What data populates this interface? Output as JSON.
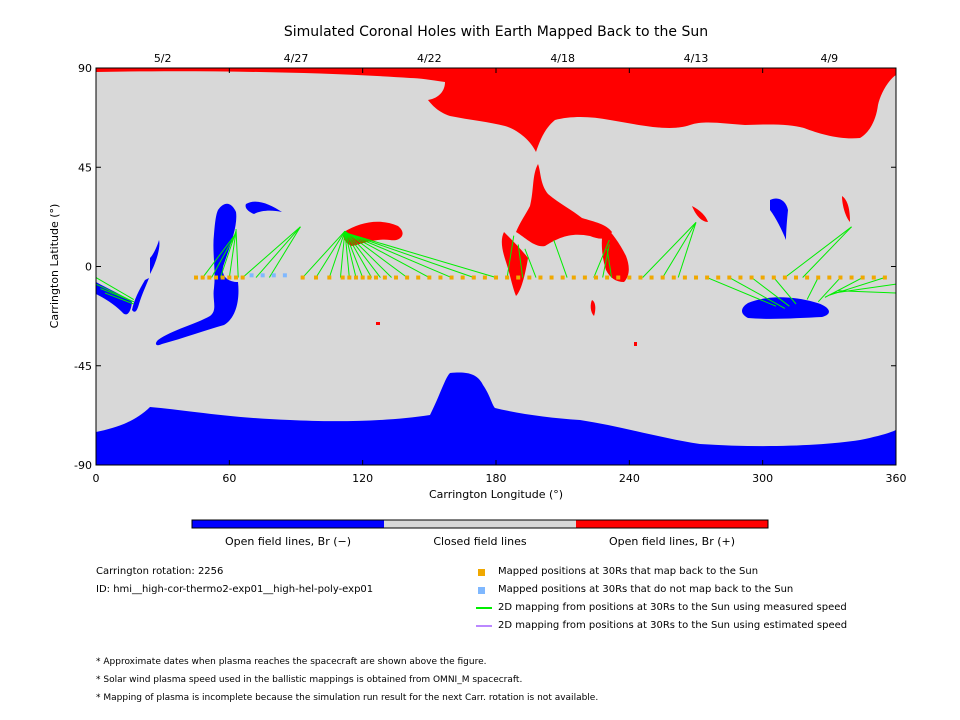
{
  "chart_data": {
    "type": "map",
    "title": "Simulated Coronal Holes with Earth Mapped Back to the Sun",
    "xlabel": "Carrington Longitude (°)",
    "ylabel": "Carrington Latitude (°)",
    "xlim": [
      0,
      360
    ],
    "ylim": [
      -90,
      90
    ],
    "x_ticks": [
      0,
      60,
      120,
      180,
      240,
      300,
      360
    ],
    "y_ticks": [
      90,
      45,
      0,
      -45,
      -90
    ],
    "y_tick_labels": [
      "90",
      "45",
      "0",
      "-45",
      "-90"
    ],
    "top_axis": [
      {
        "label": "5/2",
        "lon": 30
      },
      {
        "label": "4/27",
        "lon": 90
      },
      {
        "label": "4/22",
        "lon": 150
      },
      {
        "label": "4/18",
        "lon": 210
      },
      {
        "label": "4/13",
        "lon": 270
      },
      {
        "label": "4/9",
        "lon": 330
      }
    ],
    "colors": {
      "background": "#d8d8d8",
      "open_negative": "#0000ff",
      "open_positive": "#ff0000",
      "mapped": "#f0a800",
      "unmapped": "#7fb8ff",
      "measured_line": "#00ee00",
      "estimated_line": "#bb88ff"
    },
    "colorbar": [
      {
        "label": "Open field lines, Br (−)",
        "color": "#0000ff"
      },
      {
        "label": "Closed field lines",
        "color": "#d8d8d8"
      },
      {
        "label": "Open field lines, Br (+)",
        "color": "#ff0000"
      }
    ],
    "mapped_points": [
      [
        45,
        -5
      ],
      [
        48,
        -5
      ],
      [
        51,
        -5
      ],
      [
        54,
        -5
      ],
      [
        57,
        -5
      ],
      [
        60,
        -5
      ],
      [
        63,
        -5
      ],
      [
        66,
        -5
      ],
      [
        93,
        -5
      ],
      [
        99,
        -5
      ],
      [
        105,
        -5
      ],
      [
        111,
        -5
      ],
      [
        114,
        -5
      ],
      [
        117,
        -5
      ],
      [
        120,
        -5
      ],
      [
        123,
        -5
      ],
      [
        126,
        -5
      ],
      [
        130,
        -5
      ],
      [
        135,
        -5
      ],
      [
        140,
        -5
      ],
      [
        145,
        -5
      ],
      [
        150,
        -5
      ],
      [
        155,
        -5
      ],
      [
        160,
        -5
      ],
      [
        165,
        -5
      ],
      [
        170,
        -5
      ],
      [
        175,
        -5
      ],
      [
        180,
        -5
      ],
      [
        185,
        -5
      ],
      [
        190,
        -5
      ],
      [
        195,
        -5
      ],
      [
        200,
        -5
      ],
      [
        205,
        -5
      ],
      [
        210,
        -5
      ],
      [
        215,
        -5
      ],
      [
        220,
        -5
      ],
      [
        225,
        -5
      ],
      [
        230,
        -5
      ],
      [
        235,
        -5
      ],
      [
        240,
        -5
      ],
      [
        245,
        -5
      ],
      [
        250,
        -5
      ],
      [
        255,
        -5
      ],
      [
        260,
        -5
      ],
      [
        265,
        -5
      ],
      [
        270,
        -5
      ],
      [
        275,
        -5
      ],
      [
        280,
        -5
      ],
      [
        285,
        -5
      ],
      [
        290,
        -5
      ],
      [
        295,
        -5
      ],
      [
        300,
        -5
      ],
      [
        305,
        -5
      ],
      [
        310,
        -5
      ],
      [
        315,
        -5
      ],
      [
        320,
        -5
      ],
      [
        325,
        -5
      ],
      [
        330,
        -5
      ],
      [
        335,
        -5
      ],
      [
        340,
        -5
      ],
      [
        345,
        -5
      ],
      [
        350,
        -5
      ],
      [
        355,
        -5
      ]
    ],
    "unmapped_points": [
      [
        70,
        -4
      ],
      [
        75,
        -4
      ],
      [
        80,
        -4
      ],
      [
        85,
        -4
      ]
    ],
    "measured_lines": [
      [
        [
          0,
          -5
        ],
        [
          17,
          -15
        ]
      ],
      [
        [
          0,
          -8
        ],
        [
          17,
          -16
        ]
      ],
      [
        [
          2,
          -10
        ],
        [
          17,
          -16
        ]
      ],
      [
        [
          4,
          -12
        ],
        [
          17,
          -17
        ]
      ],
      [
        [
          48,
          -5
        ],
        [
          63,
          15
        ]
      ],
      [
        [
          52,
          -5
        ],
        [
          63,
          15
        ]
      ],
      [
        [
          56,
          -5
        ],
        [
          63,
          16
        ]
      ],
      [
        [
          60,
          -5
        ],
        [
          63,
          16
        ]
      ],
      [
        [
          64,
          -5
        ],
        [
          63,
          17
        ]
      ],
      [
        [
          66,
          -5
        ],
        [
          92,
          18
        ]
      ],
      [
        [
          72,
          -5
        ],
        [
          92,
          18
        ]
      ],
      [
        [
          78,
          -5
        ],
        [
          92,
          18
        ]
      ],
      [
        [
          93,
          -5
        ],
        [
          112,
          16
        ]
      ],
      [
        [
          99,
          -5
        ],
        [
          112,
          16
        ]
      ],
      [
        [
          105,
          -5
        ],
        [
          112,
          16
        ]
      ],
      [
        [
          110,
          -5
        ],
        [
          112,
          16
        ]
      ],
      [
        [
          114,
          -5
        ],
        [
          112,
          16
        ]
      ],
      [
        [
          117,
          -5
        ],
        [
          112,
          16
        ]
      ],
      [
        [
          120,
          -5
        ],
        [
          112,
          16
        ]
      ],
      [
        [
          124,
          -5
        ],
        [
          112,
          16
        ]
      ],
      [
        [
          128,
          -5
        ],
        [
          112,
          16
        ]
      ],
      [
        [
          133,
          -5
        ],
        [
          112,
          16
        ]
      ],
      [
        [
          140,
          -5
        ],
        [
          112,
          16
        ]
      ],
      [
        [
          150,
          -5
        ],
        [
          113,
          15
        ]
      ],
      [
        [
          160,
          -5
        ],
        [
          113,
          15
        ]
      ],
      [
        [
          170,
          -5
        ],
        [
          113,
          15
        ]
      ],
      [
        [
          180,
          -5
        ],
        [
          113,
          15
        ]
      ],
      [
        [
          185,
          -5
        ],
        [
          188,
          14
        ]
      ],
      [
        [
          192,
          -5
        ],
        [
          190,
          10
        ]
      ],
      [
        [
          198,
          -5
        ],
        [
          193,
          8
        ]
      ],
      [
        [
          212,
          -5
        ],
        [
          206,
          12
        ]
      ],
      [
        [
          224,
          -5
        ],
        [
          231,
          12
        ]
      ],
      [
        [
          228,
          -5
        ],
        [
          231,
          10
        ]
      ],
      [
        [
          232,
          -5
        ],
        [
          230,
          8
        ]
      ],
      [
        [
          246,
          -5
        ],
        [
          270,
          20
        ]
      ],
      [
        [
          255,
          -5
        ],
        [
          270,
          20
        ]
      ],
      [
        [
          262,
          -5
        ],
        [
          270,
          20
        ]
      ],
      [
        [
          275,
          -5
        ],
        [
          306,
          -18
        ]
      ],
      [
        [
          285,
          -5
        ],
        [
          310,
          -19
        ]
      ],
      [
        [
          295,
          -5
        ],
        [
          312,
          -18
        ]
      ],
      [
        [
          305,
          -5
        ],
        [
          315,
          -17
        ]
      ],
      [
        [
          310,
          -5
        ],
        [
          340,
          18
        ]
      ],
      [
        [
          318,
          -5
        ],
        [
          340,
          18
        ]
      ],
      [
        [
          325,
          -5
        ],
        [
          320,
          -15
        ]
      ],
      [
        [
          335,
          -5
        ],
        [
          325,
          -16
        ]
      ],
      [
        [
          345,
          -5
        ],
        [
          328,
          -14
        ]
      ],
      [
        [
          355,
          -5
        ],
        [
          330,
          -13
        ]
      ],
      [
        [
          360,
          -8
        ],
        [
          332,
          -12
        ]
      ],
      [
        [
          360,
          -12
        ],
        [
          334,
          -11
        ]
      ]
    ],
    "estimated_lines": []
  },
  "info": {
    "rotation": "Carrington rotation: 2256",
    "id": "ID: hmi__high-cor-thermo2-exp01__high-hel-poly-exp01"
  },
  "legend": [
    {
      "label": "Mapped positions at 30Rs that map back to the Sun",
      "color": "#f0a800",
      "kind": "square"
    },
    {
      "label": "Mapped positions at 30Rs that do not map back to the Sun",
      "color": "#7fb8ff",
      "kind": "square"
    },
    {
      "label": "2D mapping from positions at 30Rs to the Sun using measured speed",
      "color": "#00ee00",
      "kind": "line"
    },
    {
      "label": "2D mapping from positions at 30Rs to the Sun using estimated speed",
      "color": "#bb88ff",
      "kind": "line"
    }
  ],
  "notes": [
    "* Approximate dates when plasma reaches the spacecraft are shown above the figure.",
    "* Solar wind plasma speed used in the ballistic mappings is obtained from OMNI_M spacecraft.",
    "* Mapping of plasma is incomplete because the simulation run result for the next Carr. rotation is not available."
  ]
}
